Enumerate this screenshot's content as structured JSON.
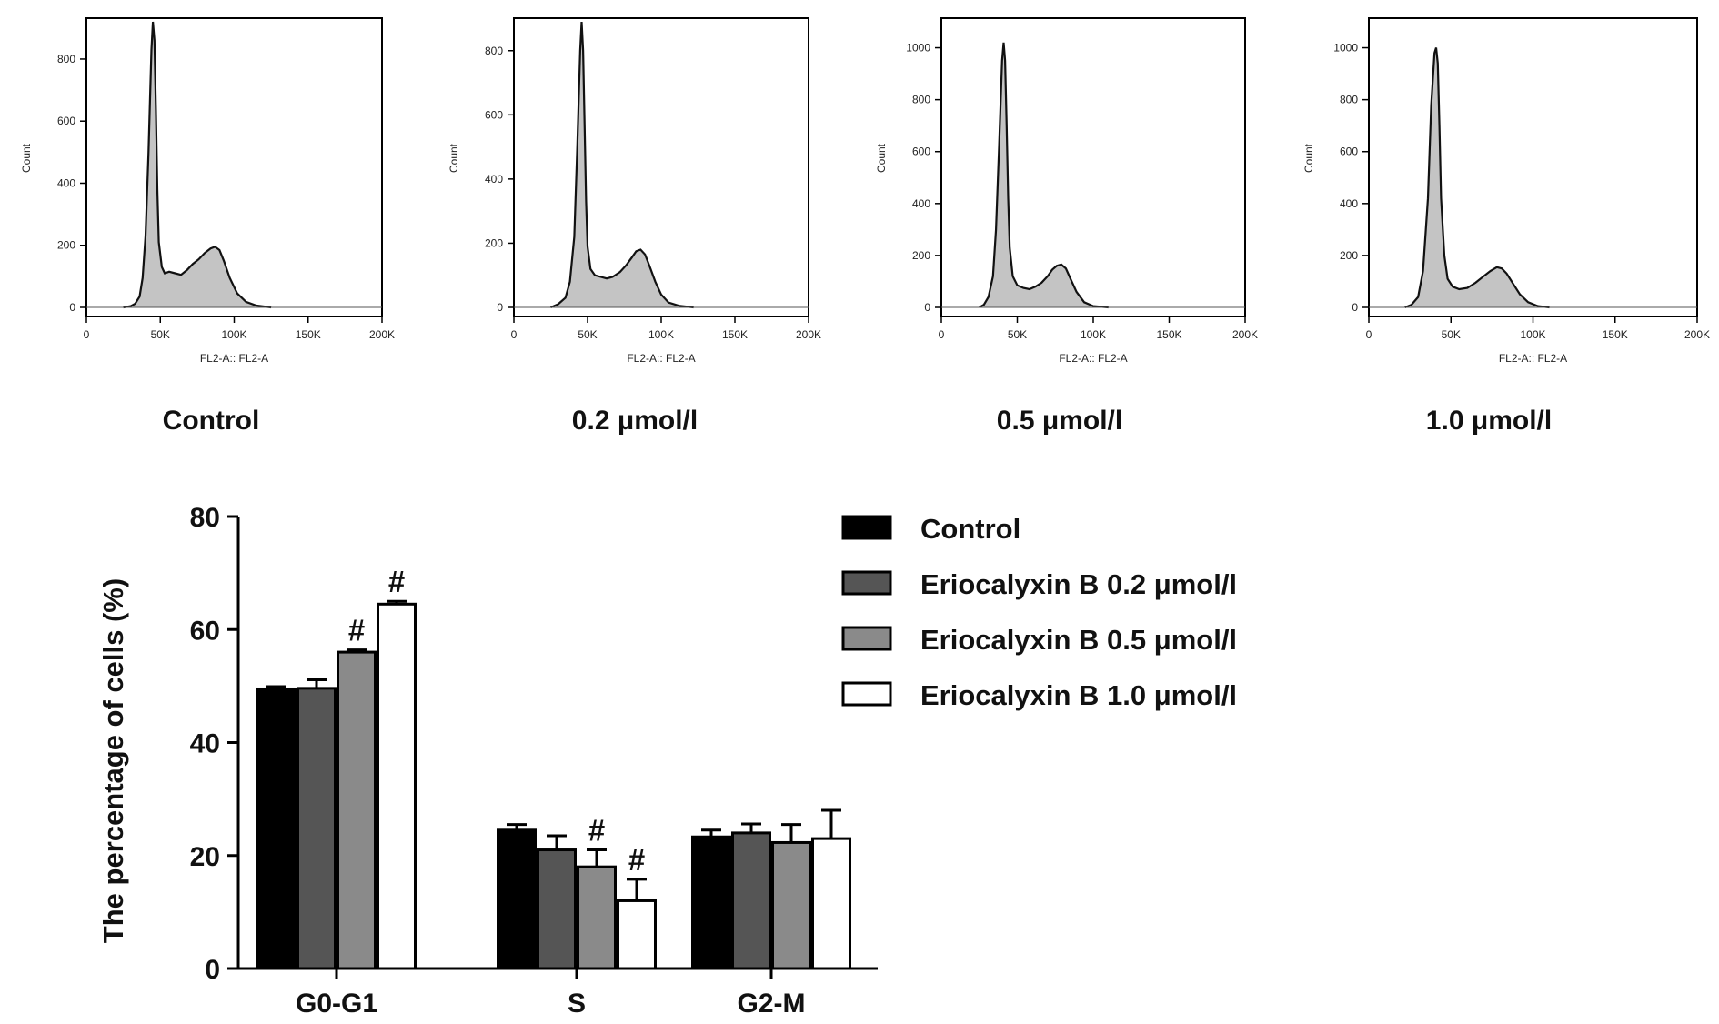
{
  "chart_data": [
    {
      "type": "area",
      "panel": "histogram-control",
      "caption": "Control",
      "xlabel": "FL2-A:: FL2-A",
      "ylabel": "Count",
      "xticks": [
        "0",
        "50K",
        "100K",
        "150K",
        "200K"
      ],
      "yticks": [
        "0",
        "200",
        "400",
        "600",
        "800"
      ],
      "xlim": [
        0,
        200000
      ],
      "ylim": [
        0,
        920
      ],
      "series": [
        {
          "x": [
            25000,
            30000,
            33000,
            36000,
            38000,
            40000,
            42000,
            44000,
            45000,
            46000,
            47000,
            48000,
            49000,
            51000,
            53000,
            56000,
            60000,
            64000,
            68000,
            72000,
            76000,
            80000,
            84000,
            87000,
            90000,
            93000,
            97000,
            102000,
            108000,
            115000,
            125000
          ],
          "y": [
            0,
            4,
            12,
            35,
            95,
            230,
            500,
            830,
            920,
            860,
            640,
            380,
            210,
            130,
            110,
            115,
            110,
            105,
            120,
            140,
            155,
            175,
            190,
            195,
            185,
            150,
            95,
            45,
            18,
            6,
            0
          ]
        }
      ]
    },
    {
      "type": "area",
      "panel": "histogram-0.2",
      "caption": "0.2 μmol/l",
      "xlabel": "FL2-A:: FL2-A",
      "ylabel": "Count",
      "xticks": [
        "0",
        "50K",
        "100K",
        "150K",
        "200K"
      ],
      "yticks": [
        "0",
        "200",
        "400",
        "600",
        "800"
      ],
      "xlim": [
        0,
        200000
      ],
      "ylim": [
        0,
        890
      ],
      "series": [
        {
          "x": [
            25000,
            30000,
            35000,
            38000,
            41000,
            43000,
            45000,
            46000,
            47000,
            48000,
            49000,
            50000,
            52000,
            55000,
            59000,
            63000,
            67000,
            72000,
            76000,
            80000,
            83000,
            86000,
            89000,
            92000,
            96000,
            100000,
            105000,
            112000,
            122000
          ],
          "y": [
            0,
            10,
            30,
            80,
            220,
            500,
            800,
            890,
            800,
            560,
            330,
            190,
            120,
            100,
            95,
            90,
            95,
            110,
            130,
            155,
            175,
            180,
            165,
            130,
            80,
            40,
            15,
            5,
            0
          ]
        }
      ]
    },
    {
      "type": "area",
      "panel": "histogram-0.5",
      "caption": "0.5 μmol/l",
      "xlabel": "FL2-A:: FL2-A",
      "ylabel": "Count",
      "xticks": [
        "0",
        "50K",
        "100K",
        "150K",
        "200K"
      ],
      "yticks": [
        "0",
        "200",
        "400",
        "600",
        "800",
        "1000"
      ],
      "xlim": [
        0,
        200000
      ],
      "ylim": [
        0,
        1100
      ],
      "series": [
        {
          "x": [
            25000,
            28000,
            31000,
            34000,
            36000,
            38000,
            40000,
            41000,
            42000,
            43000,
            44000,
            45000,
            47000,
            50000,
            54000,
            58000,
            62000,
            66000,
            70000,
            73000,
            76000,
            79000,
            82000,
            85000,
            89000,
            94000,
            100000,
            110000
          ],
          "y": [
            0,
            10,
            40,
            120,
            300,
            620,
            950,
            1020,
            950,
            700,
            420,
            230,
            120,
            85,
            75,
            70,
            80,
            95,
            120,
            145,
            160,
            165,
            150,
            110,
            60,
            20,
            5,
            0
          ]
        }
      ]
    },
    {
      "type": "area",
      "panel": "histogram-1.0",
      "caption": "1.0 μmol/l",
      "xlabel": "FL2-A:: FL2-A",
      "ylabel": "Count",
      "xticks": [
        "0",
        "50K",
        "100K",
        "150K",
        "200K"
      ],
      "yticks": [
        "0",
        "200",
        "400",
        "600",
        "800",
        "1000"
      ],
      "xlim": [
        0,
        200000
      ],
      "ylim": [
        0,
        1100
      ],
      "series": [
        {
          "x": [
            22000,
            26000,
            30000,
            33000,
            36000,
            38000,
            40000,
            41000,
            42000,
            43000,
            44000,
            46000,
            48000,
            51000,
            55000,
            60000,
            65000,
            70000,
            74000,
            78000,
            81000,
            84000,
            88000,
            92000,
            97000,
            103000,
            110000
          ],
          "y": [
            0,
            10,
            40,
            140,
            420,
            780,
            980,
            1000,
            940,
            700,
            420,
            200,
            110,
            80,
            70,
            75,
            95,
            120,
            140,
            155,
            150,
            130,
            90,
            50,
            20,
            5,
            0
          ]
        }
      ]
    },
    {
      "type": "bar",
      "panel": "cell-cycle-bars",
      "ylabel": "The percentage of cells (%)",
      "categories": [
        "G0-G1",
        "S",
        "G2-M"
      ],
      "ylim": [
        0,
        80
      ],
      "yticks": [
        "0",
        "20",
        "40",
        "60",
        "80"
      ],
      "series": [
        {
          "name": "Control",
          "color": "#000000",
          "values": [
            49.5,
            24.5,
            23.3
          ],
          "errors": [
            0.4,
            1.0,
            1.2
          ],
          "marks": [
            "",
            "",
            ""
          ]
        },
        {
          "name": "Eriocalyxin B 0.2 μmol/l",
          "color": "#555555",
          "values": [
            49.6,
            21.0,
            24.0
          ],
          "errors": [
            1.5,
            2.5,
            1.6
          ],
          "marks": [
            "",
            "",
            ""
          ]
        },
        {
          "name": "Eriocalyxin B 0.5 μmol/l",
          "color": "#8a8a8a",
          "values": [
            56.0,
            18.0,
            22.3
          ],
          "errors": [
            0.4,
            3.0,
            3.2
          ],
          "marks": [
            "#",
            "#",
            ""
          ]
        },
        {
          "name": "Eriocalyxin B 1.0 μmol/l",
          "color": "#ffffff",
          "values": [
            64.5,
            12.0,
            23.0
          ],
          "errors": [
            0.5,
            3.8,
            5.0
          ],
          "marks": [
            "#",
            "#",
            ""
          ]
        }
      ]
    }
  ]
}
